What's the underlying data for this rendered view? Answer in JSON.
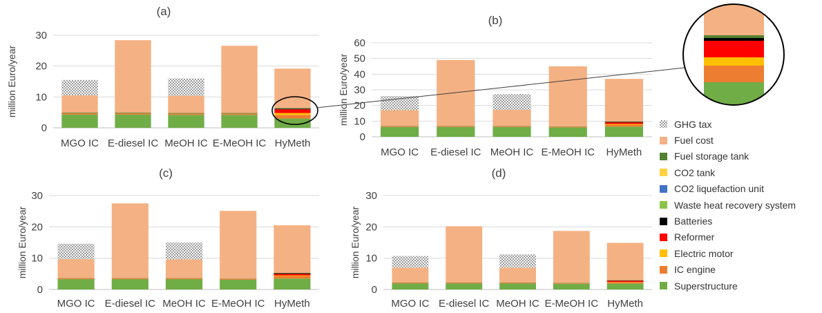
{
  "colors": {
    "Superstructure": "#70AD47",
    "IC engine": "#ED7D31",
    "Electric motor": "#FFC000",
    "Reformer": "#FF0000",
    "Batteries": "#000000",
    "Waste heat recovery system": "#8BC34A",
    "CO2 liquefaction unit": "#4472C4",
    "CO2 tank": "#FFD23F",
    "Fuel storage tank": "#548235",
    "Fuel cost": "#F4B183",
    "GHG tax": "hatch"
  },
  "legend": [
    "GHG tax",
    "Fuel cost",
    "Fuel storage tank",
    "CO2 tank",
    "CO2 liquefaction unit",
    "Waste heat recovery system",
    "Batteries",
    "Reformer",
    "Electric motor",
    "IC engine",
    "Superstructure"
  ],
  "chart_data": [
    {
      "type": "bar",
      "stacked": true,
      "title": "(a)",
      "ylabel": "million Euro/year",
      "ylim": [
        0,
        30
      ],
      "yticks": [
        0,
        10,
        20,
        30
      ],
      "categories": [
        "MGO IC",
        "E-diesel IC",
        "MeOH IC",
        "E-MeOH IC",
        "HyMeth"
      ],
      "series": [
        {
          "name": "Superstructure",
          "values": [
            4.3,
            4.3,
            4.2,
            4.2,
            3.0
          ]
        },
        {
          "name": "IC engine",
          "values": [
            0.4,
            0.4,
            0.4,
            0.4,
            1.2
          ]
        },
        {
          "name": "Electric motor",
          "values": [
            0,
            0,
            0,
            0,
            0.6
          ]
        },
        {
          "name": "Reformer",
          "values": [
            0,
            0,
            0,
            0,
            1.2
          ]
        },
        {
          "name": "Batteries",
          "values": [
            0,
            0,
            0,
            0,
            0.2
          ]
        },
        {
          "name": "Fuel storage tank",
          "values": [
            0.2,
            0.2,
            0.2,
            0.2,
            0.2
          ]
        },
        {
          "name": "Fuel cost",
          "values": [
            5.6,
            23.5,
            5.6,
            21.8,
            12.8
          ]
        },
        {
          "name": "GHG tax",
          "values": [
            5.0,
            0,
            5.6,
            0,
            0
          ]
        }
      ]
    },
    {
      "type": "bar",
      "stacked": true,
      "title": "(b)",
      "ylabel": "million Euro/year",
      "ylim": [
        0,
        60
      ],
      "yticks": [
        0,
        10,
        20,
        30,
        40,
        50,
        60
      ],
      "categories": [
        "MGO IC",
        "E-diesel IC",
        "MeOH IC",
        "E-MeOH IC",
        "HyMeth"
      ],
      "series": [
        {
          "name": "Superstructure",
          "values": [
            6.3,
            6.3,
            6.3,
            6.0,
            6.5
          ]
        },
        {
          "name": "IC engine",
          "values": [
            0.5,
            0.5,
            0.5,
            0.5,
            1.2
          ]
        },
        {
          "name": "Electric motor",
          "values": [
            0,
            0,
            0,
            0,
            0.5
          ]
        },
        {
          "name": "Reformer",
          "values": [
            0,
            0,
            0,
            0,
            1.0
          ]
        },
        {
          "name": "Batteries",
          "values": [
            0,
            0,
            0,
            0,
            0.3
          ]
        },
        {
          "name": "Fuel storage tank",
          "values": [
            0.2,
            0.2,
            0.2,
            0.2,
            0.2
          ]
        },
        {
          "name": "Fuel cost",
          "values": [
            10.0,
            42.0,
            10.2,
            38.3,
            27.3
          ]
        },
        {
          "name": "GHG tax",
          "values": [
            9.0,
            0,
            10.0,
            0,
            0
          ]
        }
      ]
    },
    {
      "type": "bar",
      "stacked": true,
      "title": "(c)",
      "ylabel": "million Euro/year",
      "ylim": [
        0,
        30
      ],
      "yticks": [
        0,
        10,
        20,
        30
      ],
      "categories": [
        "MGO IC",
        "E-diesel IC",
        "MeOH IC",
        "E-MeOH IC",
        "HyMeth"
      ],
      "series": [
        {
          "name": "Superstructure",
          "values": [
            3.3,
            3.3,
            3.3,
            3.1,
            3.5
          ]
        },
        {
          "name": "IC engine",
          "values": [
            0.3,
            0.3,
            0.3,
            0.3,
            0.8
          ]
        },
        {
          "name": "Electric motor",
          "values": [
            0,
            0,
            0,
            0,
            0.2
          ]
        },
        {
          "name": "Reformer",
          "values": [
            0,
            0,
            0,
            0,
            0.5
          ]
        },
        {
          "name": "Batteries",
          "values": [
            0,
            0,
            0,
            0,
            0.2
          ]
        },
        {
          "name": "Fuel storage tank",
          "values": [
            0.1,
            0.1,
            0.1,
            0.1,
            0.1
          ]
        },
        {
          "name": "Fuel cost",
          "values": [
            6.0,
            23.8,
            5.9,
            21.6,
            15.2
          ]
        },
        {
          "name": "GHG tax",
          "values": [
            4.9,
            0,
            5.4,
            0,
            0
          ]
        }
      ]
    },
    {
      "type": "bar",
      "stacked": true,
      "title": "(d)",
      "ylabel": "million Euro/year",
      "ylim": [
        0,
        30
      ],
      "yticks": [
        0,
        10,
        20,
        30
      ],
      "categories": [
        "MGO IC",
        "E-diesel IC",
        "MeOH IC",
        "E-MeOH IC",
        "HyMeth"
      ],
      "series": [
        {
          "name": "Superstructure",
          "values": [
            1.9,
            1.9,
            1.9,
            1.8,
            1.9
          ]
        },
        {
          "name": "IC engine",
          "values": [
            0.2,
            0.2,
            0.2,
            0.2,
            0.4
          ]
        },
        {
          "name": "Electric motor",
          "values": [
            0,
            0,
            0,
            0,
            0.1
          ]
        },
        {
          "name": "Reformer",
          "values": [
            0,
            0,
            0,
            0,
            0.4
          ]
        },
        {
          "name": "Batteries",
          "values": [
            0,
            0,
            0,
            0,
            0.1
          ]
        },
        {
          "name": "Fuel storage tank",
          "values": [
            0.1,
            0.1,
            0.1,
            0.1,
            0.1
          ]
        },
        {
          "name": "Fuel cost",
          "values": [
            4.8,
            18.0,
            4.8,
            16.6,
            11.9
          ]
        },
        {
          "name": "GHG tax",
          "values": [
            3.7,
            0,
            4.2,
            0,
            0
          ]
        }
      ]
    }
  ]
}
